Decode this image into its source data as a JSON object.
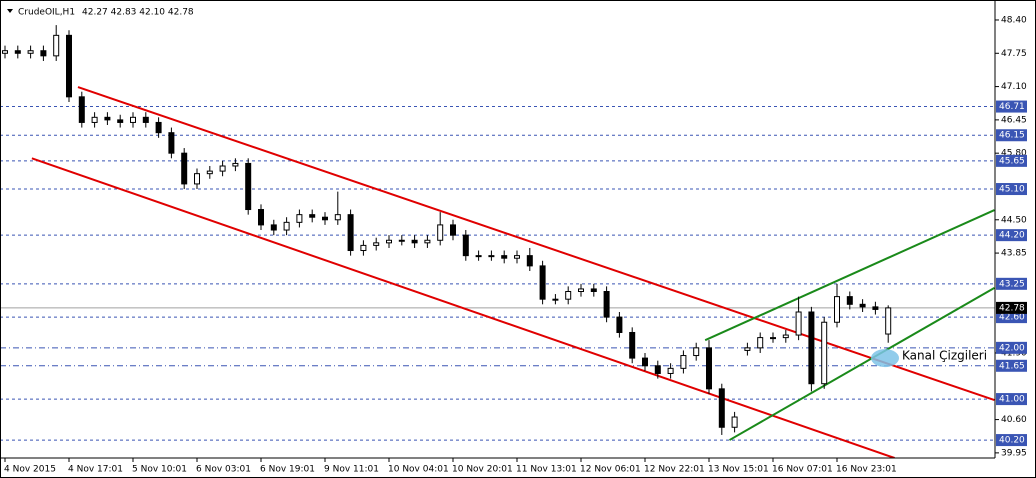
{
  "chart_data": {
    "type": "candlestick",
    "title": "CrudeOIL,H1",
    "header": "42.27 42.83 42.10 42.78",
    "categories": [
      "4 Nov 2015",
      null,
      null,
      null,
      null,
      "4 Nov 17:01",
      null,
      null,
      null,
      null,
      "5 Nov 10:01",
      null,
      null,
      null,
      null,
      "6 Nov 03:01",
      null,
      null,
      null,
      null,
      "6 Nov 19:01",
      null,
      null,
      null,
      null,
      "9 Nov 11:01",
      null,
      null,
      null,
      null,
      "10 Nov 04:01",
      null,
      null,
      null,
      null,
      "10 Nov 20:01",
      null,
      null,
      null,
      null,
      "11 Nov 13:01",
      null,
      null,
      null,
      null,
      "12 Nov 06:01",
      null,
      null,
      null,
      null,
      "12 Nov 22:01",
      null,
      null,
      null,
      null,
      "13 Nov 15:01",
      null,
      null,
      null,
      null,
      "16 Nov 07:01",
      null,
      null,
      null,
      null,
      "16 Nov 23:01",
      null,
      null,
      null,
      null
    ],
    "open": [
      47.75,
      47.8,
      47.75,
      47.8,
      47.7,
      48.1,
      46.9,
      46.4,
      46.5,
      46.45,
      46.4,
      46.5,
      46.4,
      46.2,
      45.8,
      45.2,
      45.4,
      45.45,
      45.55,
      45.6,
      44.7,
      44.4,
      44.3,
      44.45,
      44.6,
      44.55,
      44.5,
      44.6,
      43.9,
      44.0,
      44.05,
      44.1,
      44.1,
      44.05,
      44.1,
      44.4,
      44.2,
      43.8,
      43.8,
      43.8,
      43.75,
      43.8,
      43.6,
      42.95,
      42.95,
      43.1,
      43.15,
      43.1,
      42.6,
      42.3,
      41.8,
      41.65,
      41.5,
      41.6,
      41.85,
      42.0,
      41.2,
      40.45,
      41.95,
      42.0,
      42.2,
      42.2,
      42.25,
      42.7,
      41.3,
      42.5,
      43.0,
      42.85,
      42.8,
      42.27
    ],
    "high": [
      47.9,
      47.9,
      47.9,
      47.9,
      48.3,
      48.2,
      47.0,
      46.6,
      46.6,
      46.55,
      46.6,
      46.6,
      46.5,
      46.3,
      45.9,
      45.5,
      45.55,
      45.65,
      45.7,
      45.7,
      44.8,
      44.5,
      44.55,
      44.7,
      44.7,
      44.65,
      45.05,
      44.7,
      44.1,
      44.15,
      44.2,
      44.2,
      44.2,
      44.2,
      44.65,
      44.5,
      44.3,
      43.9,
      43.9,
      43.9,
      43.9,
      43.95,
      43.7,
      43.05,
      43.2,
      43.25,
      43.25,
      43.2,
      42.7,
      42.4,
      41.9,
      41.75,
      41.7,
      41.95,
      42.1,
      42.15,
      41.3,
      40.75,
      42.1,
      42.3,
      42.3,
      42.35,
      43.0,
      42.8,
      42.6,
      43.25,
      43.1,
      42.95,
      42.9,
      42.83
    ],
    "low": [
      47.65,
      47.65,
      47.65,
      47.6,
      47.6,
      46.8,
      46.3,
      46.3,
      46.35,
      46.3,
      46.3,
      46.3,
      46.1,
      45.7,
      45.1,
      45.1,
      45.3,
      45.35,
      45.45,
      44.6,
      44.3,
      44.2,
      44.2,
      44.35,
      44.45,
      44.4,
      44.4,
      43.8,
      43.8,
      43.9,
      43.95,
      44.0,
      43.95,
      43.95,
      44.0,
      44.1,
      43.7,
      43.7,
      43.7,
      43.65,
      43.65,
      43.5,
      42.85,
      42.85,
      42.85,
      43.0,
      43.0,
      42.5,
      42.2,
      41.7,
      41.55,
      41.4,
      41.4,
      41.5,
      41.75,
      41.1,
      40.3,
      40.35,
      41.85,
      41.9,
      42.1,
      42.1,
      42.15,
      41.15,
      41.2,
      42.4,
      42.75,
      42.7,
      42.65,
      42.1
    ],
    "close": [
      47.8,
      47.75,
      47.8,
      47.7,
      48.1,
      46.9,
      46.4,
      46.5,
      46.45,
      46.4,
      46.5,
      46.4,
      46.2,
      45.8,
      45.2,
      45.4,
      45.45,
      45.55,
      45.6,
      44.7,
      44.4,
      44.3,
      44.45,
      44.6,
      44.55,
      44.5,
      44.6,
      43.9,
      44.0,
      44.05,
      44.1,
      44.1,
      44.05,
      44.1,
      44.4,
      44.2,
      43.8,
      43.8,
      43.8,
      43.75,
      43.8,
      43.6,
      42.95,
      42.95,
      43.1,
      43.15,
      43.1,
      42.6,
      42.3,
      41.8,
      41.65,
      41.5,
      41.6,
      41.85,
      42.0,
      41.2,
      40.45,
      40.65,
      42.0,
      42.2,
      42.2,
      42.25,
      42.7,
      41.3,
      42.5,
      43.0,
      42.85,
      42.8,
      42.75,
      42.78
    ],
    "ylim": [
      39.85,
      48.79
    ],
    "yticks": [
      {
        "value": 48.4,
        "label": "48.40"
      },
      47.75,
      {
        "value": 47.1,
        "label": "47.10"
      },
      46.45,
      {
        "value": 45.8,
        "label": "45.80"
      },
      {
        "value": 44.5,
        "label": "44.50"
      },
      43.85,
      {
        "value": 41.9,
        "label": "41.90"
      },
      {
        "value": 40.6,
        "label": "40.60"
      },
      39.95
    ],
    "levels": [
      {
        "value": 46.71,
        "style": "dash"
      },
      {
        "value": 46.15,
        "style": "dash"
      },
      {
        "value": 45.65,
        "style": "dash"
      },
      {
        "value": 45.1,
        "label": "45.10",
        "style": "dash"
      },
      {
        "value": 44.2,
        "label": "44.20",
        "style": "dash"
      },
      {
        "value": 43.25,
        "style": "dash"
      },
      {
        "value": 42.6,
        "label": "42.60",
        "style": "dash"
      },
      {
        "value": 42,
        "label": "42.00",
        "style": "dashdot"
      },
      {
        "value": 41.65,
        "style": "dashdot"
      },
      {
        "value": 41,
        "label": "41.00",
        "style": "dash"
      },
      {
        "value": 40.2,
        "label": "40.20",
        "style": "dash"
      }
    ],
    "level_color": "#3a55b4",
    "bid": 42.78,
    "trendlines": [
      {
        "color": "#e00000",
        "x": [
          5.7,
          77.3
        ],
        "y": [
          47.09,
          40.98
        ]
      },
      {
        "color": "#e00000",
        "x": [
          2.1,
          69.5
        ],
        "y": [
          45.7,
          39.85
        ]
      },
      {
        "color": "#1a8a1a",
        "x": [
          56.6,
          77.3
        ],
        "y": [
          40.2,
          43.17
        ]
      },
      {
        "color": "#1a8a1a",
        "x": [
          54.7,
          77.3
        ],
        "y": [
          42.15,
          44.69
        ]
      }
    ],
    "annotation": {
      "text": "Kanal Çizgileri",
      "x": 68.75,
      "y": 41.8
    }
  }
}
